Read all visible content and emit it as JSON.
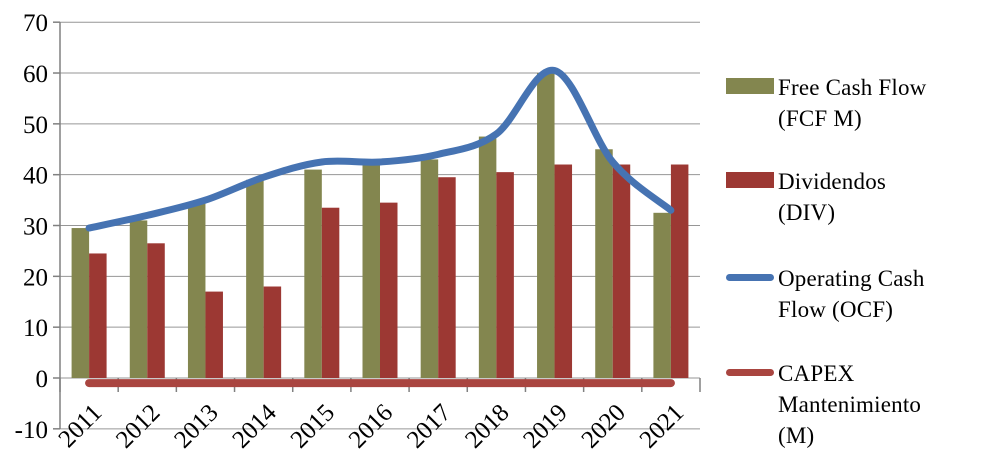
{
  "chart_data": {
    "type": "combo",
    "title": "",
    "categories": [
      "2011",
      "2012",
      "2013",
      "2014",
      "2015",
      "2016",
      "2017",
      "2018",
      "2019",
      "2020",
      "2021"
    ],
    "series": [
      {
        "key": "fcf",
        "name": "Free Cash Flow (FCF M)",
        "type": "bar",
        "color": "#83864F",
        "values": [
          29.5,
          31,
          34.5,
          39,
          41,
          42,
          43,
          47.5,
          60,
          45,
          32.5
        ]
      },
      {
        "key": "div",
        "name": "Dividendos (DIV)",
        "type": "bar",
        "color": "#9C3833",
        "values": [
          24.5,
          26.5,
          17,
          18,
          33.5,
          34.5,
          39.5,
          40.5,
          42,
          42,
          42
        ]
      },
      {
        "key": "ocf",
        "name": "Operating Cash Flow (OCF)",
        "type": "line",
        "color": "#4673B2",
        "smooth": true,
        "values": [
          29.5,
          32,
          35,
          39.5,
          42.5,
          42.5,
          44,
          48,
          60.5,
          42.5,
          33
        ]
      },
      {
        "key": "capex",
        "name": "CAPEX Mantenimiento (M)",
        "type": "line",
        "color": "#A94540",
        "smooth": false,
        "values": [
          -1,
          -1,
          -1,
          -1,
          -1,
          -1,
          -1,
          -1,
          -1,
          -1,
          -1
        ]
      }
    ],
    "legend": [
      {
        "series": 0,
        "swatch": "bar",
        "lines": [
          "Free Cash Flow",
          "(FCF M)"
        ]
      },
      {
        "series": 1,
        "swatch": "bar",
        "lines": [
          "Dividendos",
          "(DIV)"
        ]
      },
      {
        "series": 2,
        "swatch": "line",
        "lines": [
          "Operating Cash",
          "Flow (OCF)"
        ]
      },
      {
        "series": 3,
        "swatch": "line",
        "lines": [
          "CAPEX",
          "Mantenimiento",
          "(M)"
        ]
      }
    ],
    "legend_position": "right",
    "grid": true,
    "y_axis": {
      "min": -10,
      "max": 70,
      "step": 10,
      "tick_labels": [
        "-10",
        "0",
        "10",
        "20",
        "30",
        "40",
        "50",
        "60",
        "70"
      ]
    },
    "x_axis": {
      "label_rotation": -45
    },
    "xlabel": "",
    "ylabel": "",
    "colors": {
      "grid": "#969696",
      "axis": "#808080",
      "background": "#FFFFFF",
      "text": "#000000"
    }
  }
}
